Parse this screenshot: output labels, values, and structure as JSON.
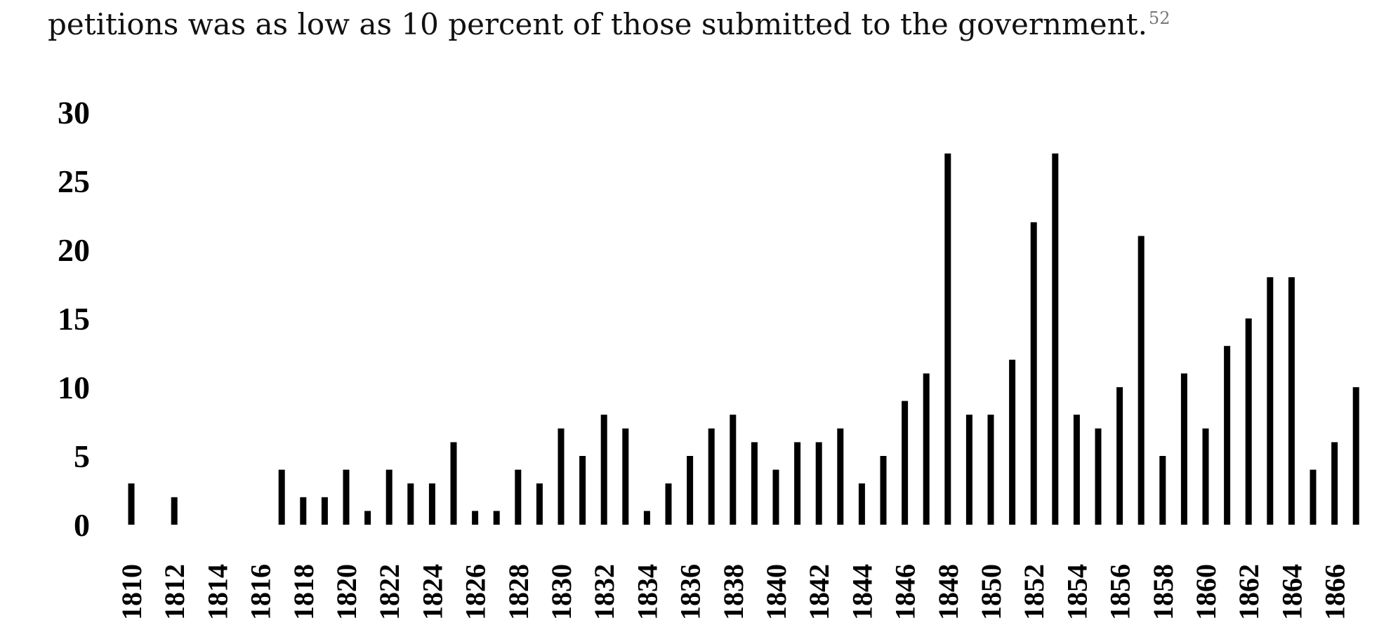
{
  "page": {
    "text_line": "petitions was as low as 10 percent of those submitted to the government.",
    "footnote_ref": "52"
  },
  "chart_data": {
    "type": "bar",
    "title": "",
    "xlabel": "",
    "ylabel": "",
    "ylim": [
      0,
      30
    ],
    "yticks": [
      0,
      5,
      10,
      15,
      20,
      25,
      30
    ],
    "xtick_labels": [
      "1810",
      "1812",
      "1814",
      "1816",
      "1818",
      "1820",
      "1822",
      "1824",
      "1826",
      "1828",
      "1830",
      "1832",
      "1834",
      "1836",
      "1838",
      "1840",
      "1842",
      "1844",
      "1846",
      "1848",
      "1850",
      "1852",
      "1854",
      "1856",
      "1858",
      "1860",
      "1862",
      "1864",
      "1866"
    ],
    "categories": [
      "1810",
      "1811",
      "1812",
      "1813",
      "1814",
      "1815",
      "1816",
      "1817",
      "1818",
      "1819",
      "1820",
      "1821",
      "1822",
      "1823",
      "1824",
      "1825",
      "1826",
      "1827",
      "1828",
      "1829",
      "1830",
      "1831",
      "1832",
      "1833",
      "1834",
      "1835",
      "1836",
      "1837",
      "1838",
      "1839",
      "1840",
      "1841",
      "1842",
      "1843",
      "1844",
      "1845",
      "1846",
      "1847",
      "1848",
      "1849",
      "1850",
      "1851",
      "1852",
      "1853",
      "1854",
      "1855",
      "1856",
      "1857",
      "1858",
      "1859",
      "1860",
      "1861",
      "1862",
      "1863",
      "1864",
      "1865",
      "1866",
      "1867"
    ],
    "values": [
      3,
      0,
      2,
      0,
      0,
      0,
      0,
      4,
      2,
      2,
      4,
      1,
      4,
      3,
      3,
      6,
      1,
      1,
      4,
      3,
      7,
      5,
      8,
      7,
      1,
      3,
      5,
      7,
      8,
      6,
      4,
      6,
      6,
      7,
      3,
      5,
      9,
      11,
      27,
      8,
      8,
      12,
      22,
      27,
      8,
      7,
      10,
      21,
      5,
      11,
      7,
      13,
      15,
      18,
      18,
      4,
      6,
      10
    ],
    "grid": false,
    "legend": "none",
    "bar_color": "#000000"
  }
}
